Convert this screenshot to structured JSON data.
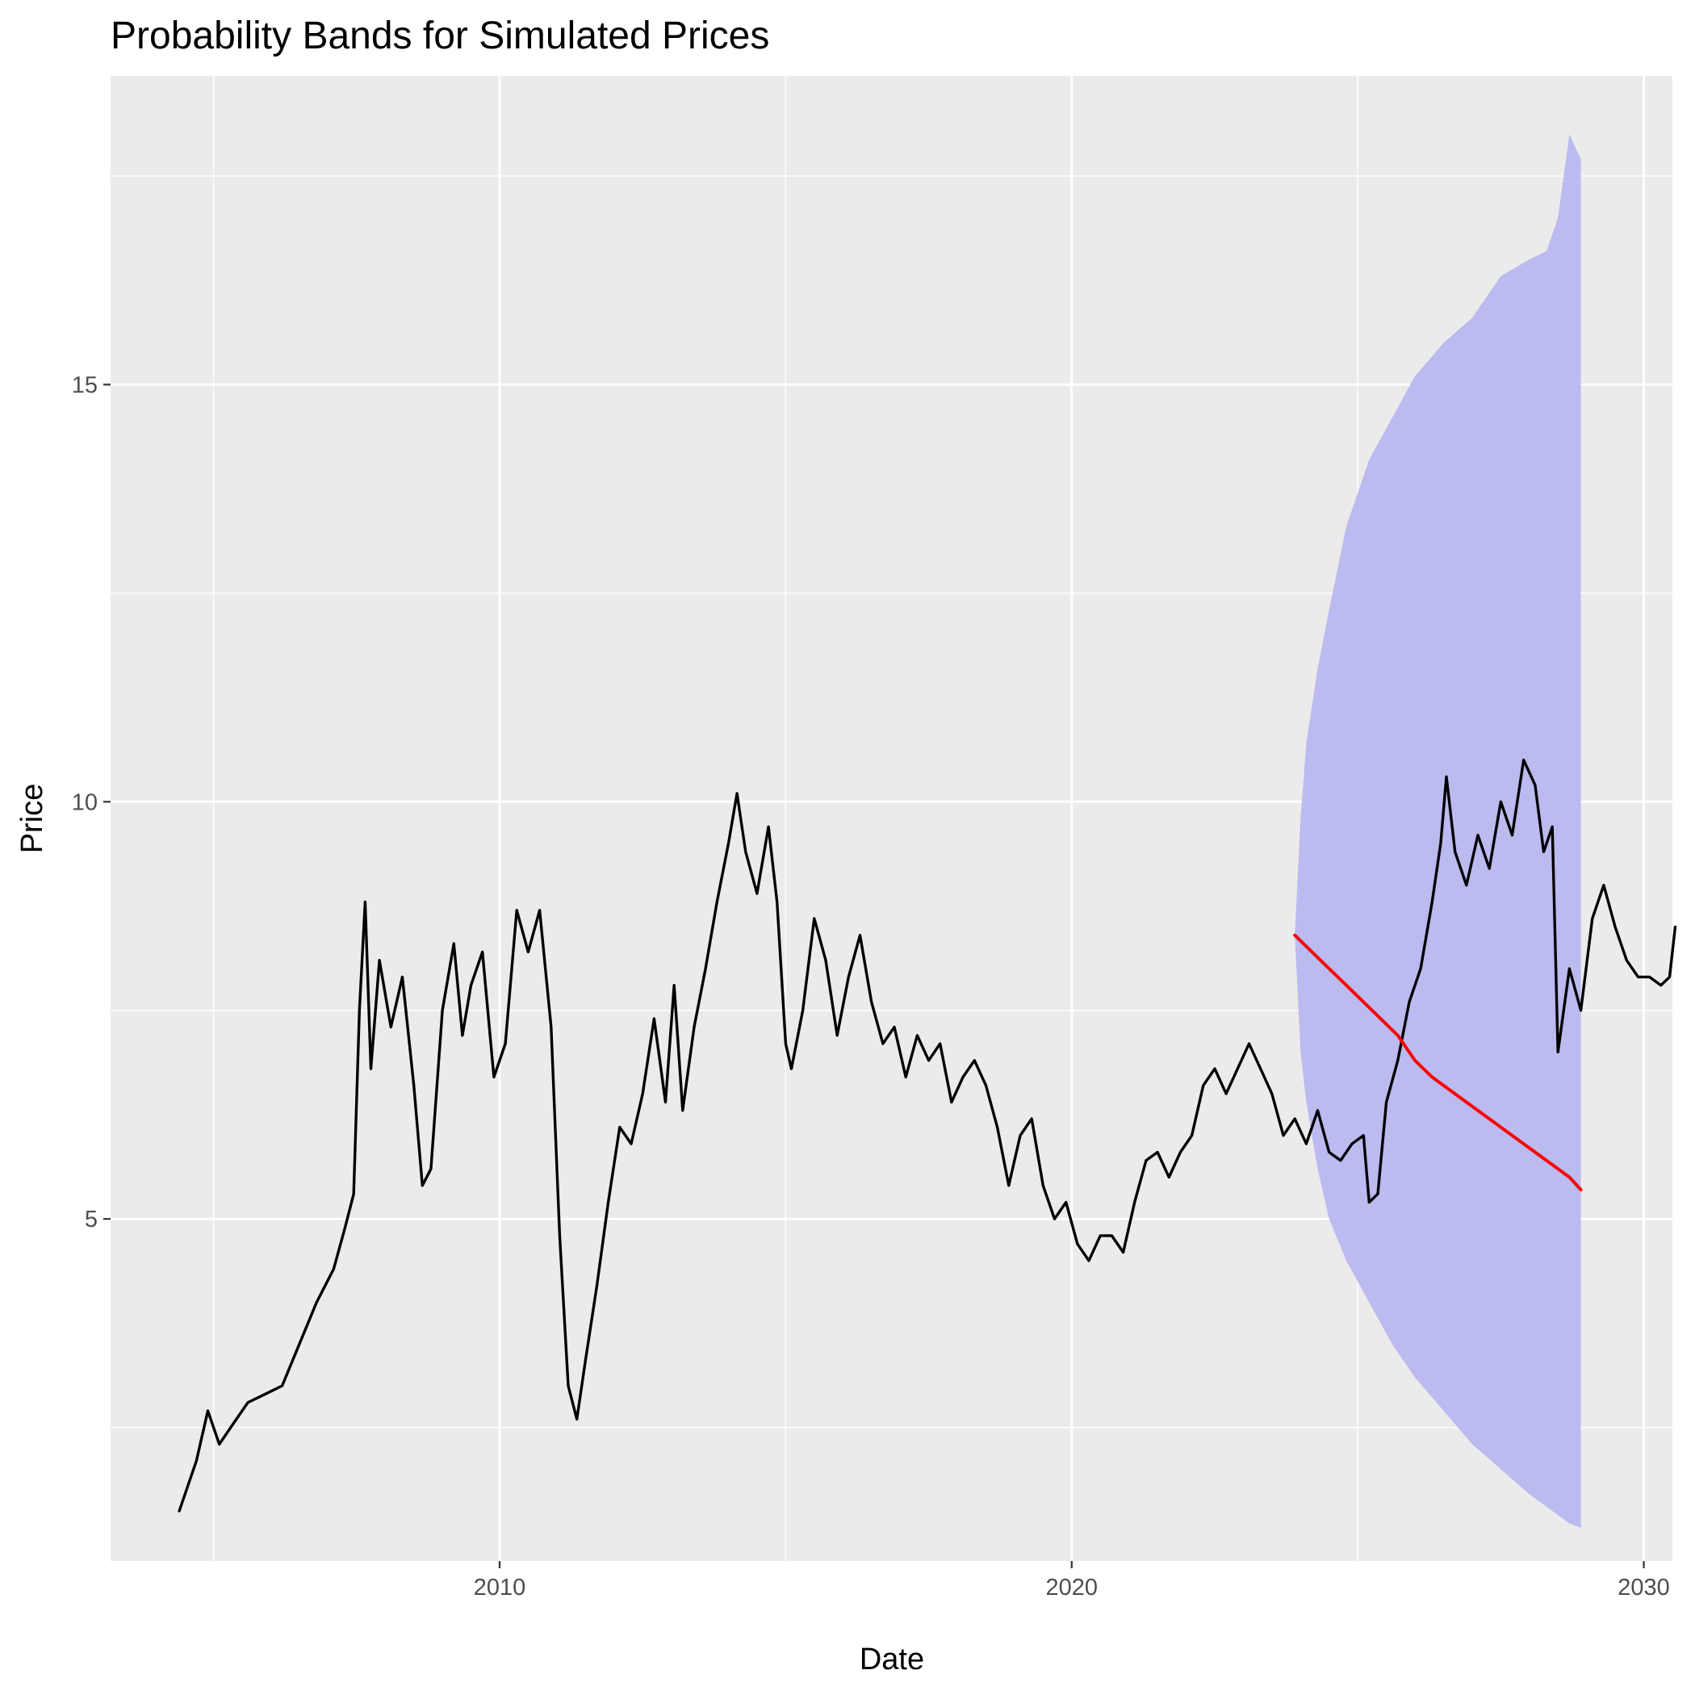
{
  "chart_data": {
    "type": "line",
    "title": "Probability Bands for Simulated Prices",
    "xlabel": "Date",
    "ylabel": "Price",
    "xlim": [
      2003.2,
      2030.5
    ],
    "ylim": [
      0.9,
      18.7
    ],
    "x_ticks": [
      2010,
      2020,
      2030
    ],
    "x_tick_labels": [
      "2010",
      "2020",
      "2030"
    ],
    "x_minor_ticks": [
      2005,
      2015,
      2025
    ],
    "y_ticks": [
      5,
      10,
      15
    ],
    "y_tick_labels": [
      "5",
      "10",
      "15"
    ],
    "y_minor_ticks": [
      2.5,
      7.5,
      12.5,
      17.5
    ],
    "grid": true,
    "legend": "none",
    "colors": {
      "panel_background": "#ebebeb",
      "grid_major": "#ffffff",
      "historical_line": "#000000",
      "median_line": "#ff0000",
      "band_fill": "#bbbbf0"
    },
    "series": [
      {
        "role": "historical",
        "color": "#000000",
        "points": [
          [
            2004.4,
            1.5
          ],
          [
            2004.7,
            2.1
          ],
          [
            2004.9,
            2.7
          ],
          [
            2005.1,
            2.3
          ],
          [
            2005.3,
            2.5
          ],
          [
            2005.6,
            2.8
          ],
          [
            2005.9,
            2.9
          ],
          [
            2006.2,
            3.0
          ],
          [
            2006.5,
            3.5
          ],
          [
            2006.8,
            4.0
          ],
          [
            2007.1,
            4.4
          ],
          [
            2007.3,
            4.9
          ],
          [
            2007.45,
            5.3
          ],
          [
            2007.55,
            7.5
          ],
          [
            2007.65,
            8.8
          ],
          [
            2007.75,
            6.8
          ],
          [
            2007.9,
            8.1
          ],
          [
            2008.1,
            7.3
          ],
          [
            2008.3,
            7.9
          ],
          [
            2008.5,
            6.6
          ],
          [
            2008.65,
            5.4
          ],
          [
            2008.8,
            5.6
          ],
          [
            2009.0,
            7.5
          ],
          [
            2009.2,
            8.3
          ],
          [
            2009.35,
            7.2
          ],
          [
            2009.5,
            7.8
          ],
          [
            2009.7,
            8.2
          ],
          [
            2009.9,
            6.7
          ],
          [
            2010.1,
            7.1
          ],
          [
            2010.3,
            8.7
          ],
          [
            2010.5,
            8.2
          ],
          [
            2010.7,
            8.7
          ],
          [
            2010.9,
            7.3
          ],
          [
            2011.05,
            4.8
          ],
          [
            2011.2,
            3.0
          ],
          [
            2011.35,
            2.6
          ],
          [
            2011.5,
            3.3
          ],
          [
            2011.7,
            4.2
          ],
          [
            2011.9,
            5.2
          ],
          [
            2012.1,
            6.1
          ],
          [
            2012.3,
            5.9
          ],
          [
            2012.5,
            6.5
          ],
          [
            2012.7,
            7.4
          ],
          [
            2012.9,
            6.4
          ],
          [
            2013.05,
            7.8
          ],
          [
            2013.2,
            6.3
          ],
          [
            2013.4,
            7.3
          ],
          [
            2013.6,
            8.0
          ],
          [
            2013.8,
            8.8
          ],
          [
            2014.0,
            9.5
          ],
          [
            2014.15,
            10.1
          ],
          [
            2014.3,
            9.4
          ],
          [
            2014.5,
            8.9
          ],
          [
            2014.7,
            9.7
          ],
          [
            2014.85,
            8.8
          ],
          [
            2015.0,
            7.1
          ],
          [
            2015.1,
            6.8
          ],
          [
            2015.3,
            7.5
          ],
          [
            2015.5,
            8.6
          ],
          [
            2015.7,
            8.1
          ],
          [
            2015.9,
            7.2
          ],
          [
            2016.1,
            7.9
          ],
          [
            2016.3,
            8.4
          ],
          [
            2016.5,
            7.6
          ],
          [
            2016.7,
            7.1
          ],
          [
            2016.9,
            7.3
          ],
          [
            2017.1,
            6.7
          ],
          [
            2017.3,
            7.2
          ],
          [
            2017.5,
            6.9
          ],
          [
            2017.7,
            7.1
          ],
          [
            2017.9,
            6.4
          ],
          [
            2018.1,
            6.7
          ],
          [
            2018.3,
            6.9
          ],
          [
            2018.5,
            6.6
          ],
          [
            2018.7,
            6.1
          ],
          [
            2018.9,
            5.4
          ],
          [
            2019.1,
            6.0
          ],
          [
            2019.3,
            6.2
          ],
          [
            2019.5,
            5.4
          ],
          [
            2019.7,
            5.0
          ],
          [
            2019.9,
            5.2
          ],
          [
            2020.1,
            4.7
          ],
          [
            2020.3,
            4.5
          ],
          [
            2020.5,
            4.8
          ],
          [
            2020.7,
            4.8
          ],
          [
            2020.9,
            4.6
          ],
          [
            2021.1,
            5.2
          ],
          [
            2021.3,
            5.7
          ],
          [
            2021.5,
            5.8
          ],
          [
            2021.7,
            5.5
          ],
          [
            2021.9,
            5.8
          ],
          [
            2022.1,
            6.0
          ],
          [
            2022.3,
            6.6
          ],
          [
            2022.5,
            6.8
          ],
          [
            2022.7,
            6.5
          ],
          [
            2022.9,
            6.8
          ],
          [
            2023.1,
            7.1
          ],
          [
            2023.3,
            6.8
          ],
          [
            2023.5,
            6.5
          ],
          [
            2023.7,
            6.0
          ],
          [
            2023.9,
            6.2
          ],
          [
            2024.1,
            5.9
          ],
          [
            2024.3,
            6.3
          ],
          [
            2024.5,
            5.8
          ],
          [
            2024.7,
            5.7
          ],
          [
            2024.9,
            5.9
          ],
          [
            2025.1,
            6.0
          ],
          [
            2025.2,
            5.2
          ],
          [
            2025.35,
            5.3
          ],
          [
            2025.5,
            6.4
          ],
          [
            2025.7,
            6.9
          ],
          [
            2025.9,
            7.6
          ],
          [
            2026.1,
            8.0
          ],
          [
            2026.3,
            8.8
          ],
          [
            2026.45,
            9.5
          ],
          [
            2026.55,
            10.3
          ],
          [
            2026.7,
            9.4
          ],
          [
            2026.9,
            9.0
          ],
          [
            2027.1,
            9.6
          ],
          [
            2027.3,
            9.2
          ],
          [
            2027.5,
            10.0
          ],
          [
            2027.7,
            9.6
          ],
          [
            2027.9,
            10.5
          ],
          [
            2028.1,
            10.2
          ],
          [
            2028.25,
            9.4
          ],
          [
            2028.4,
            9.7
          ],
          [
            2028.5,
            7.0
          ],
          [
            2028.7,
            8.0
          ],
          [
            2028.9,
            7.5
          ],
          [
            2029.1,
            8.6
          ],
          [
            2029.3,
            9.0
          ],
          [
            2029.5,
            8.5
          ],
          [
            2029.7,
            8.1
          ],
          [
            2029.9,
            7.9
          ],
          [
            2030.1,
            7.9
          ],
          [
            2030.3,
            7.8
          ],
          [
            2030.45,
            7.9
          ],
          [
            2030.55,
            8.5
          ]
        ]
      },
      {
        "role": "median-simulated",
        "color": "#ff0000",
        "points": [
          [
            2023.9,
            8.4
          ],
          [
            2024.2,
            8.2
          ],
          [
            2024.5,
            8.0
          ],
          [
            2024.8,
            7.8
          ],
          [
            2025.1,
            7.6
          ],
          [
            2025.4,
            7.4
          ],
          [
            2025.7,
            7.2
          ],
          [
            2026.0,
            6.9
          ],
          [
            2026.3,
            6.7
          ],
          [
            2026.6,
            6.55
          ],
          [
            2026.9,
            6.4
          ],
          [
            2027.2,
            6.25
          ],
          [
            2027.5,
            6.1
          ],
          [
            2027.8,
            5.95
          ],
          [
            2028.1,
            5.8
          ],
          [
            2028.4,
            5.65
          ],
          [
            2028.7,
            5.5
          ],
          [
            2028.9,
            5.35
          ]
        ]
      }
    ],
    "band": {
      "color": "#bbbbf0",
      "x": [
        2023.9,
        2024.0,
        2024.1,
        2024.3,
        2024.5,
        2024.8,
        2025.2,
        2025.6,
        2026.0,
        2026.5,
        2027.0,
        2027.5,
        2028.0,
        2028.3,
        2028.5,
        2028.7,
        2028.9
      ],
      "upper": [
        8.4,
        9.8,
        10.7,
        11.6,
        12.3,
        13.3,
        14.1,
        14.6,
        15.1,
        15.5,
        15.8,
        16.3,
        16.5,
        16.6,
        17.0,
        18.0,
        17.7
      ],
      "lower": [
        8.4,
        7.0,
        6.4,
        5.6,
        5.0,
        4.5,
        4.0,
        3.5,
        3.1,
        2.7,
        2.3,
        2.0,
        1.7,
        1.55,
        1.45,
        1.35,
        1.3
      ]
    }
  }
}
